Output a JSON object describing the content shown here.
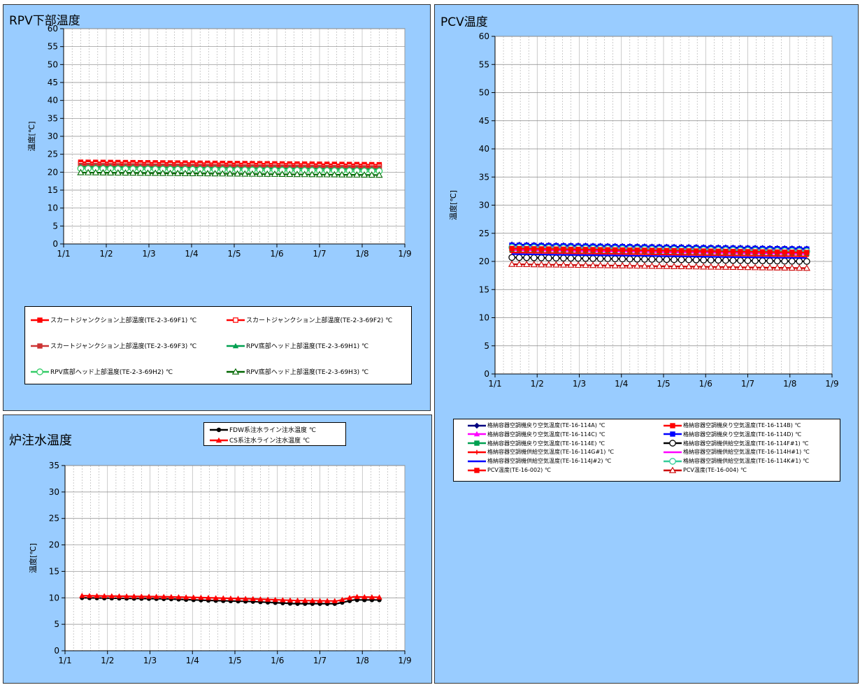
{
  "chart_data": [
    {
      "id": "rpv",
      "type": "line",
      "title": "RPV下部温度",
      "ylabel": "温度[℃]",
      "xlabel": "",
      "x_ticks": [
        "1/1",
        "1/2",
        "1/3",
        "1/4",
        "1/5",
        "1/6",
        "1/7",
        "1/8",
        "1/9"
      ],
      "y_ticks": [
        0,
        5,
        10,
        15,
        20,
        25,
        30,
        35,
        40,
        45,
        50,
        55,
        60
      ],
      "xlim": [
        1,
        9
      ],
      "ylim": [
        0,
        60
      ],
      "grid": true,
      "legend_position": "bottom",
      "series": [
        {
          "name": "スカートジャンクション上部温度(TE-2-3-69F1) ℃",
          "color": "#ff0000",
          "marker": "square-filled",
          "x": [
            1.4,
            2.4,
            3.4,
            4.4,
            5.4,
            6.4,
            7.4,
            8.4
          ],
          "values": [
            22.8,
            22.7,
            22.6,
            22.5,
            22.4,
            22.3,
            22.2,
            22.1
          ]
        },
        {
          "name": "スカートジャンクション上部温度(TE-2-3-69F2) ℃",
          "color": "#ff0000",
          "marker": "square-open",
          "x": [
            1.4,
            2.4,
            3.4,
            4.4,
            5.4,
            6.4,
            7.4,
            8.4
          ],
          "values": [
            22.3,
            22.2,
            22.1,
            22.0,
            21.9,
            21.8,
            21.7,
            21.6
          ]
        },
        {
          "name": "スカートジャンクション上部温度(TE-2-3-69F3) ℃",
          "color": "#cc3333",
          "marker": "square-filled",
          "x": [
            1.4,
            2.4,
            3.4,
            4.4,
            5.4,
            6.4,
            7.4,
            8.4
          ],
          "values": [
            21.9,
            21.8,
            21.7,
            21.6,
            21.5,
            21.4,
            21.3,
            21.2
          ]
        },
        {
          "name": "RPV底部ヘッド上部温度(TE-2-3-69H1) ℃",
          "color": "#00a050",
          "marker": "triangle-filled",
          "x": [
            1.4,
            2.4,
            3.4,
            4.4,
            5.4,
            6.4,
            7.4,
            8.4
          ],
          "values": [
            21.5,
            21.4,
            21.3,
            21.2,
            21.1,
            21.0,
            20.9,
            20.8
          ]
        },
        {
          "name": "RPV底部ヘッド上部温度(TE-2-3-69H2) ℃",
          "color": "#33cc66",
          "marker": "circle-open",
          "x": [
            1.4,
            2.4,
            3.4,
            4.4,
            5.4,
            6.4,
            7.4,
            8.4
          ],
          "values": [
            21.0,
            20.9,
            20.8,
            20.7,
            20.6,
            20.5,
            20.4,
            20.3
          ]
        },
        {
          "name": "RPV底部ヘッド上部温度(TE-2-3-69H3) ℃",
          "color": "#006600",
          "marker": "triangle-open",
          "x": [
            1.4,
            2.4,
            3.4,
            4.4,
            5.4,
            6.4,
            7.4,
            8.4
          ],
          "values": [
            19.9,
            19.8,
            19.7,
            19.6,
            19.5,
            19.4,
            19.3,
            19.2
          ]
        }
      ]
    },
    {
      "id": "pcv",
      "type": "line",
      "title": "PCV温度",
      "ylabel": "温度[℃]",
      "xlabel": "",
      "x_ticks": [
        "1/1",
        "1/2",
        "1/3",
        "1/4",
        "1/5",
        "1/6",
        "1/7",
        "1/8",
        "1/9"
      ],
      "y_ticks": [
        0,
        5,
        10,
        15,
        20,
        25,
        30,
        35,
        40,
        45,
        50,
        55,
        60
      ],
      "xlim": [
        1,
        9
      ],
      "ylim": [
        0,
        60
      ],
      "grid": true,
      "legend_position": "bottom",
      "series": [
        {
          "name": "格納容器空調機戻り空気温度(TE-16-114A) ℃",
          "color": "#000080",
          "marker": "diamond-filled",
          "x": [
            1.4,
            2.4,
            3.4,
            4.4,
            5.4,
            6.4,
            7.4,
            8.4
          ],
          "values": [
            23.0,
            22.9,
            22.8,
            22.7,
            22.6,
            22.5,
            22.4,
            22.3
          ]
        },
        {
          "name": "格納容器空調機戻り空気温度(TE-16-114B) ℃",
          "color": "#ff0000",
          "marker": "square-filled",
          "x": [
            1.4,
            2.4,
            3.4,
            4.4,
            5.4,
            6.4,
            7.4,
            8.4
          ],
          "values": [
            22.4,
            22.3,
            22.2,
            22.1,
            22.0,
            21.9,
            21.8,
            21.7
          ]
        },
        {
          "name": "格納容器空調機戻り空気温度(TE-16-114C) ℃",
          "color": "#ff00ff",
          "marker": "triangle-filled",
          "x": [
            1.4,
            2.4,
            3.4,
            4.4,
            5.4,
            6.4,
            7.4,
            8.4
          ],
          "values": [
            22.7,
            22.6,
            22.5,
            22.4,
            22.3,
            22.2,
            22.1,
            22.0
          ]
        },
        {
          "name": "格納容器空調機戻り空気温度(TE-16-114D) ℃",
          "color": "#0000ff",
          "marker": "square-filled",
          "x": [
            1.4,
            2.4,
            3.4,
            4.4,
            5.4,
            6.4,
            7.4,
            8.4
          ],
          "values": [
            22.9,
            22.8,
            22.7,
            22.6,
            22.5,
            22.4,
            22.3,
            22.2
          ]
        },
        {
          "name": "格納容器空調機戻り空気温度(TE-16-114E) ℃",
          "color": "#00a050",
          "marker": "square-filled",
          "x": [
            1.4,
            2.4,
            3.4,
            4.4,
            5.4,
            6.4,
            7.4,
            8.4
          ],
          "values": [
            22.1,
            22.0,
            21.9,
            21.8,
            21.7,
            21.6,
            21.5,
            21.4
          ]
        },
        {
          "name": "格納容器空調機供給空気温度(TE-16-114F#1) ℃",
          "color": "#000000",
          "marker": "circle-open",
          "x": [
            1.4,
            2.4,
            3.4,
            4.4,
            5.4,
            6.4,
            7.4,
            8.4
          ],
          "values": [
            20.7,
            20.6,
            20.5,
            20.4,
            20.3,
            20.2,
            20.1,
            20.0
          ]
        },
        {
          "name": "格納容器空調機供給空気温度(TE-16-114G#1) ℃",
          "color": "#ff0000",
          "marker": "plus",
          "x": [
            1.4,
            2.4,
            3.4,
            4.4,
            5.4,
            6.4,
            7.4,
            8.4
          ],
          "values": [
            21.6,
            21.5,
            21.4,
            21.3,
            21.2,
            21.1,
            21.0,
            20.9
          ]
        },
        {
          "name": "格納容器空調機供給空気温度(TE-16-114H#1) ℃",
          "color": "#ff00ff",
          "marker": "none",
          "x": [
            1.4,
            2.4,
            3.4,
            4.4,
            5.4,
            6.4,
            7.4,
            8.4
          ],
          "values": [
            22.0,
            21.9,
            21.8,
            21.7,
            21.6,
            21.5,
            21.4,
            21.3
          ]
        },
        {
          "name": "格納容器空調機供給空気温度(TE-16-114J#2) ℃",
          "color": "#0000ff",
          "marker": "none",
          "x": [
            1.4,
            2.4,
            3.4,
            4.4,
            5.4,
            6.4,
            7.4,
            8.4
          ],
          "values": [
            21.3,
            21.2,
            21.1,
            21.0,
            20.9,
            20.8,
            20.7,
            20.6
          ]
        },
        {
          "name": "格納容器空調機供給空気温度(TE-16-114K#1) ℃",
          "color": "#33cc99",
          "marker": "circle-open",
          "x": [
            1.4,
            2.4,
            3.4,
            4.4,
            5.4,
            6.4,
            7.4,
            8.4
          ],
          "values": [
            22.5,
            22.4,
            22.3,
            22.2,
            22.1,
            22.0,
            21.9,
            21.8
          ]
        },
        {
          "name": "PCV温度(TE-16-002) ℃",
          "color": "#ff0000",
          "marker": "square-filled",
          "x": [
            1.4,
            2.4,
            3.4,
            4.4,
            5.4,
            6.4,
            7.4,
            8.4
          ],
          "values": [
            22.3,
            22.2,
            22.1,
            22.0,
            21.9,
            21.8,
            21.7,
            21.6
          ]
        },
        {
          "name": "PCV温度(TE-16-004) ℃",
          "color": "#cc0000",
          "marker": "triangle-open",
          "x": [
            1.4,
            2.4,
            3.4,
            4.4,
            5.4,
            6.4,
            7.4,
            8.4
          ],
          "values": [
            19.5,
            19.4,
            19.3,
            19.2,
            19.1,
            19.0,
            18.9,
            18.8
          ]
        }
      ]
    },
    {
      "id": "feed",
      "type": "line",
      "title": "炉注水温度",
      "ylabel": "温度[℃]",
      "xlabel": "",
      "x_ticks": [
        "1/1",
        "1/2",
        "1/3",
        "1/4",
        "1/5",
        "1/6",
        "1/7",
        "1/8",
        "1/9"
      ],
      "y_ticks": [
        0,
        5,
        10,
        15,
        20,
        25,
        30,
        35
      ],
      "xlim": [
        1,
        9
      ],
      "ylim": [
        0,
        35
      ],
      "grid": true,
      "legend_position": "top",
      "series": [
        {
          "name": "FDW系注水ライン注水温度 ℃",
          "color": "#000000",
          "marker": "circle-filled",
          "x": [
            1.4,
            2.4,
            3.4,
            4.4,
            5.4,
            6.4,
            7.4,
            7.8,
            8.4
          ],
          "values": [
            10.0,
            9.9,
            9.8,
            9.5,
            9.3,
            8.9,
            8.9,
            9.6,
            9.6
          ]
        },
        {
          "name": "CS系注水ライン注水温度 ℃",
          "color": "#ff0000",
          "marker": "triangle-filled",
          "x": [
            1.4,
            2.4,
            3.4,
            4.4,
            5.4,
            6.4,
            7.4,
            7.8,
            8.4
          ],
          "values": [
            10.4,
            10.3,
            10.2,
            10.0,
            9.8,
            9.5,
            9.4,
            10.2,
            10.1
          ]
        }
      ]
    }
  ]
}
